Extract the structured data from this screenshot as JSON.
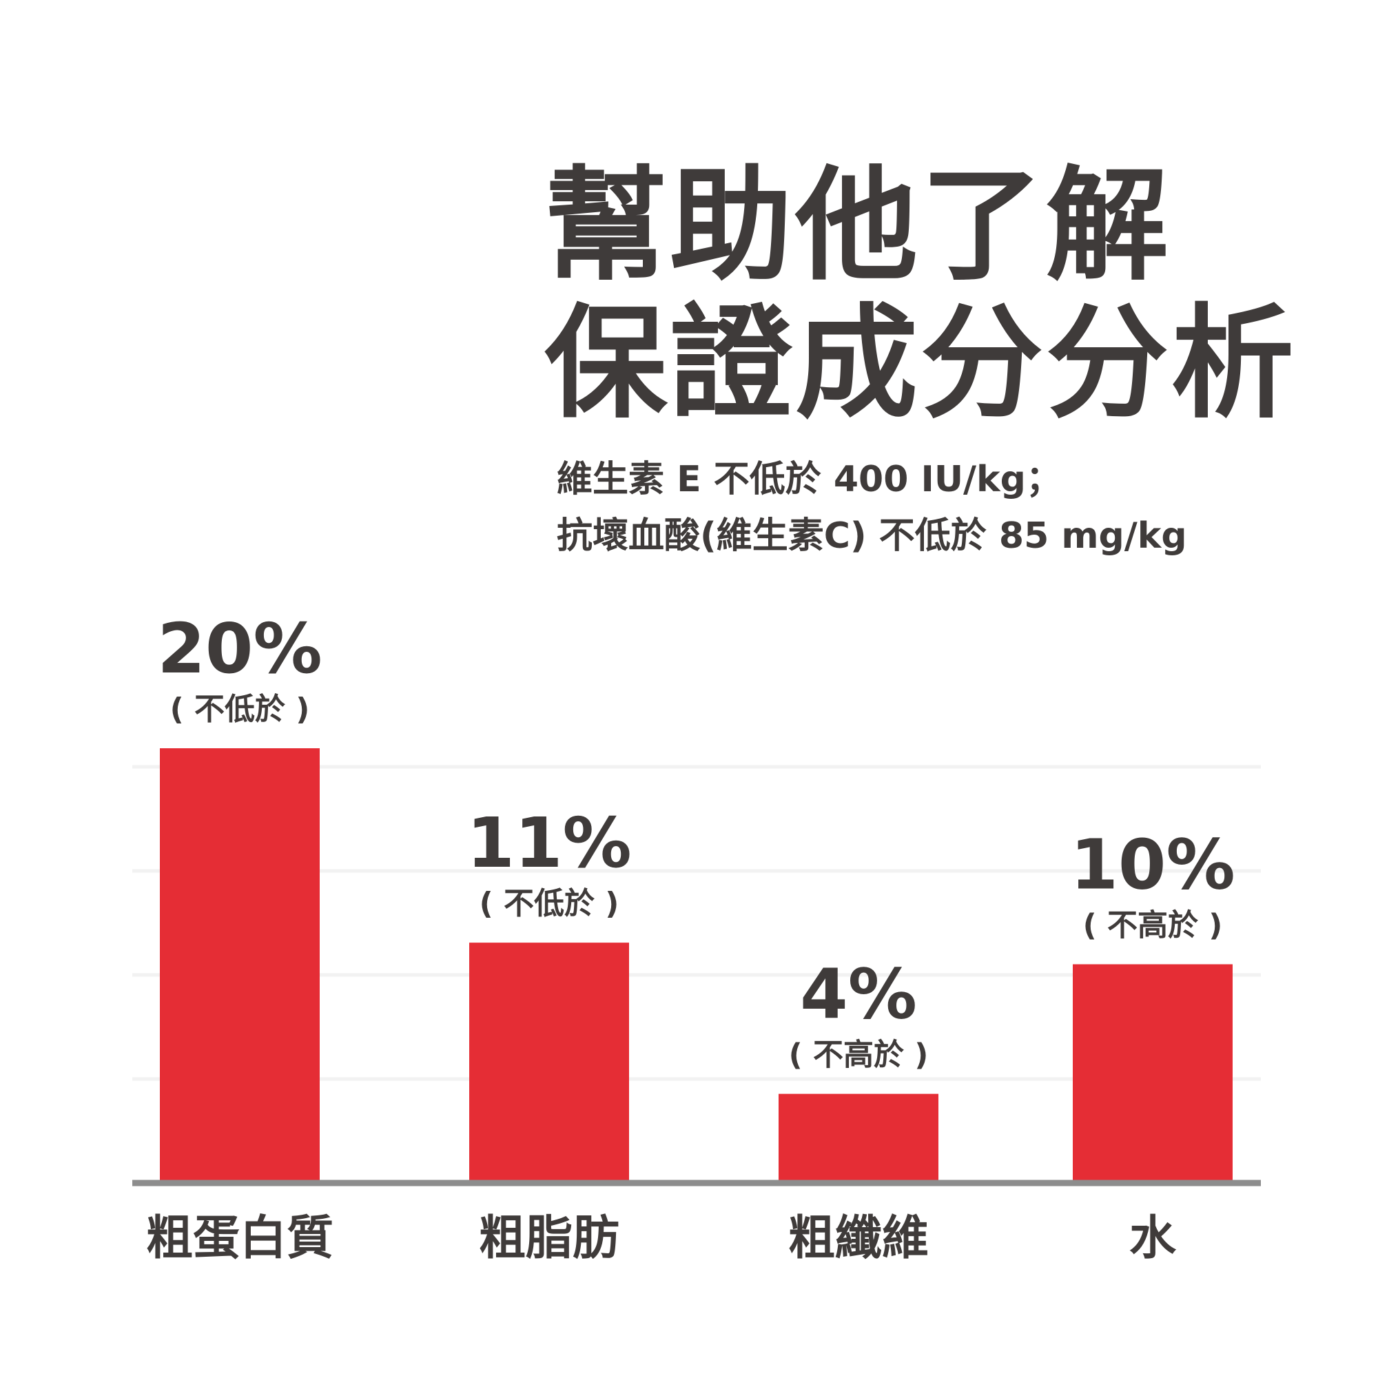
{
  "title": {
    "line1": "幫助他了解",
    "line2": "保證成分分析"
  },
  "subtitle": {
    "line1": "維生素 E 不低於 400 IU/kg；",
    "line2": "抗壞血酸(維生素C) 不低於 85 mg/kg"
  },
  "colors": {
    "bar": "#e52d35",
    "text": "#3f3b3a",
    "baseline": "#8d8d8d",
    "grid": "#f2f2f2"
  },
  "chart_data": {
    "type": "bar",
    "categories": [
      "粗蛋白質",
      "粗脂肪",
      "粗纖維",
      "水"
    ],
    "values": [
      20,
      11,
      4,
      10
    ],
    "value_labels": [
      "20%",
      "11%",
      "4%",
      "10%"
    ],
    "qualifiers": [
      "( 不低於 )",
      "( 不低於 )",
      "( 不高於 )",
      "( 不高於 )"
    ],
    "ylim": [
      0,
      20
    ],
    "grid": true,
    "title": "",
    "xlabel": "",
    "ylabel": ""
  }
}
